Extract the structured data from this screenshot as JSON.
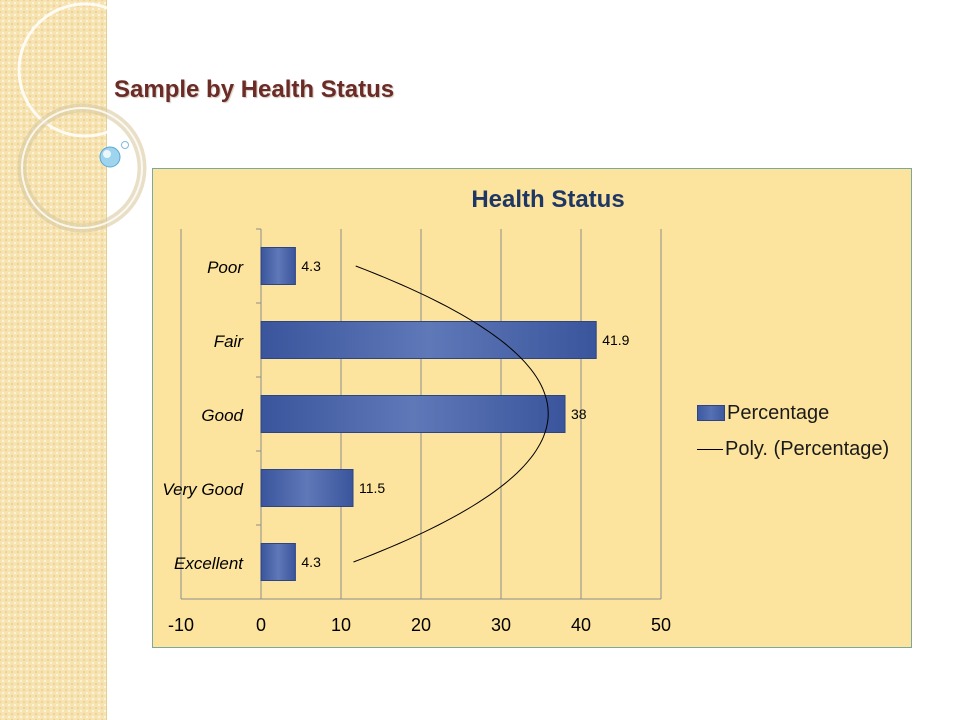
{
  "slide": {
    "title": "Sample by Health Status"
  },
  "colors": {
    "bar": "#4a62a8",
    "bar_edge": "#2d4486",
    "trendline": "#000000",
    "title": "#1f3764",
    "plot_bg": "#fde49e"
  },
  "chart_data": {
    "type": "bar",
    "orientation": "horizontal",
    "title": "Health Status",
    "categories": [
      "Poor",
      "Fair",
      "Good",
      "Very Good",
      "Excellent"
    ],
    "series": [
      {
        "name": "Percentage",
        "values": [
          4.3,
          41.9,
          38,
          11.5,
          4.3
        ]
      }
    ],
    "data_labels": [
      "4.3",
      "41.9",
      "38",
      "11.5",
      "4.3"
    ],
    "trendline": {
      "name": "Poly. (Percentage)",
      "type": "polynomial",
      "order": 2,
      "coefficients": [
        -6.05,
        36.37,
        -18.76
      ]
    },
    "xlim": [
      -10,
      50
    ],
    "xticks": [
      -10,
      0,
      10,
      20,
      30,
      40,
      50
    ],
    "xtick_labels": [
      "-10",
      "0",
      "10",
      "20",
      "30",
      "40",
      "50"
    ],
    "grid": "vertical",
    "legend": {
      "position": "right",
      "entries": [
        "Percentage",
        "Poly. (Percentage)"
      ]
    }
  }
}
